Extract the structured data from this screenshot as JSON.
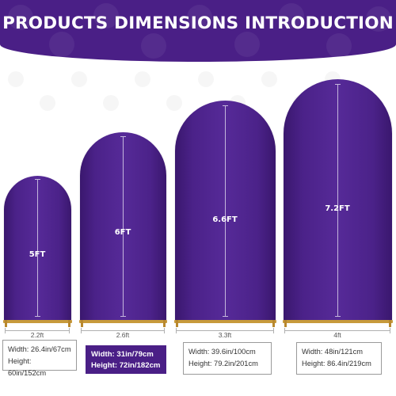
{
  "header": {
    "title": "PRODUCTS DIMENSIONS  INTRODUCTION"
  },
  "colors": {
    "banner": "#4a1f86",
    "arch": "#4b2289",
    "stand": "#c79a3b"
  },
  "arches": [
    {
      "height_label": "5FT",
      "width_label": "2.2ft",
      "width_text": "Width: 26.4in/67cm",
      "height_text": "Height: 60in/152cm",
      "highlighted": false
    },
    {
      "height_label": "6FT",
      "width_label": "2.6ft",
      "width_text": "Width: 31in/79cm",
      "height_text": "Height: 72in/182cm",
      "highlighted": true
    },
    {
      "height_label": "6.6FT",
      "width_label": "3.3ft",
      "width_text": "Width: 39.6in/100cm",
      "height_text": "Height: 79.2in/201cm",
      "highlighted": false
    },
    {
      "height_label": "7.2FT",
      "width_label": "4ft",
      "width_text": "Width: 48in/121cm",
      "height_text": "Height: 86.4in/219cm",
      "highlighted": false
    }
  ]
}
